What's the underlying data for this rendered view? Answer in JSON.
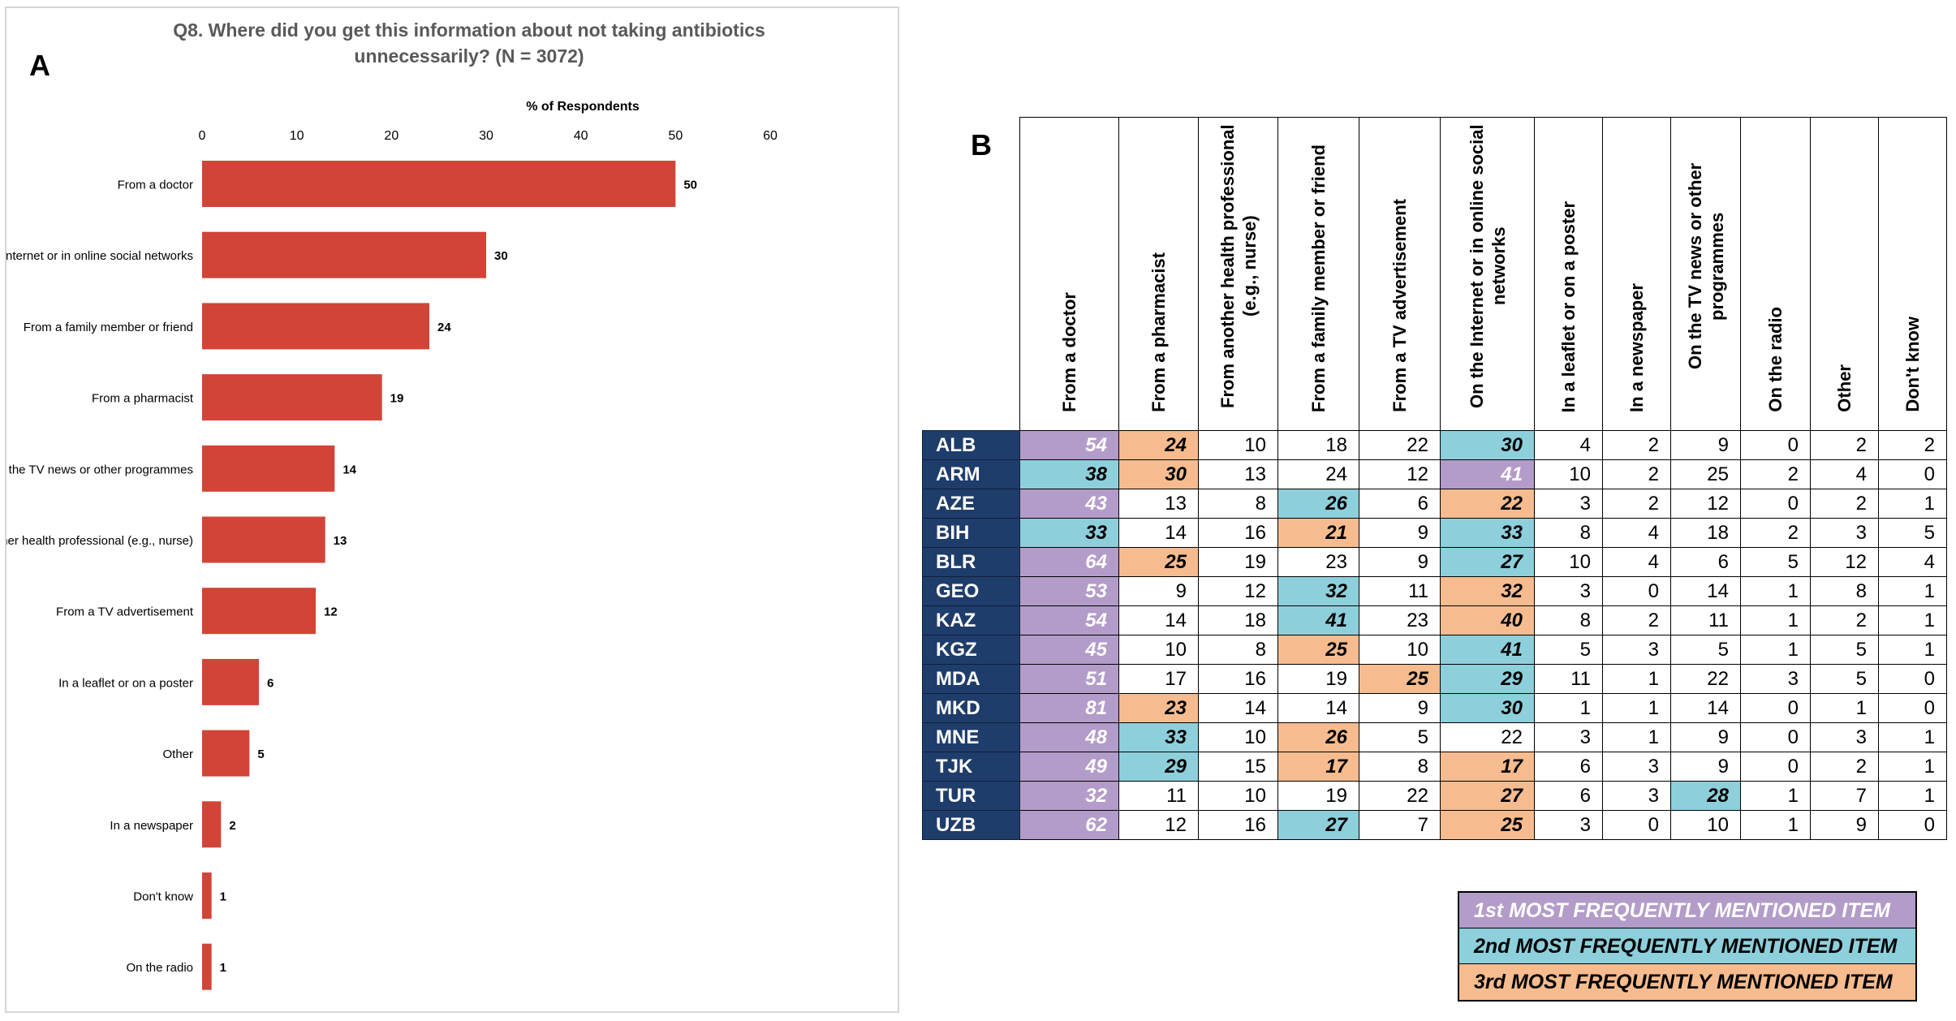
{
  "panel_a": {
    "letter": "A",
    "title_line1": "Q8. Where did you get this information about not taking antibiotics",
    "title_line2": "unnecessarily? (N = 3072)"
  },
  "panel_b": {
    "letter": "B"
  },
  "colors": {
    "bar": "#d14437",
    "rank1": "#b39cc9",
    "rank2": "#8ecfdc",
    "rank3": "#f6bc8f",
    "country_bg": "#1f3d6b"
  },
  "chart_data": {
    "type": "bar",
    "orientation": "horizontal",
    "title": "Q8. Where did you get this information about not taking antibiotics unnecessarily? (N = 3072)",
    "xlabel": "% of Respondents",
    "ylabel": "",
    "xlim": [
      0,
      60
    ],
    "xticks": [
      0,
      10,
      20,
      30,
      40,
      50,
      60
    ],
    "categories": [
      "From a doctor",
      "On the Internet or in online social networks",
      "From a family member or friend",
      "From a pharmacist",
      "On the TV news or other programmes",
      "From another health professional (e.g., nurse)",
      "From a TV advertisement",
      "In a leaflet or on a poster",
      "Other",
      "In a newspaper",
      "Don't know",
      "On the radio"
    ],
    "values": [
      50,
      30,
      24,
      19,
      14,
      13,
      12,
      6,
      5,
      2,
      1,
      1
    ],
    "grid": false
  },
  "table": {
    "headers": [
      "From a doctor",
      "From a pharmacist",
      "From another health professional (e.g., nurse)",
      "From a family member or friend",
      "From a TV advertisement",
      "On the Internet or in online social networks",
      "In a leaflet or on a poster",
      "In a newspaper",
      "On the TV news or other programmes",
      "On the radio",
      "Other",
      "Don't know"
    ],
    "rows": [
      {
        "code": "ALB",
        "values": [
          54,
          24,
          10,
          18,
          22,
          30,
          4,
          2,
          9,
          0,
          2,
          2
        ],
        "ranks": [
          1,
          3,
          0,
          0,
          0,
          2,
          0,
          0,
          0,
          0,
          0,
          0
        ]
      },
      {
        "code": "ARM",
        "values": [
          38,
          30,
          13,
          24,
          12,
          41,
          10,
          2,
          25,
          2,
          4,
          0
        ],
        "ranks": [
          2,
          3,
          0,
          0,
          0,
          1,
          0,
          0,
          0,
          0,
          0,
          0
        ]
      },
      {
        "code": "AZE",
        "values": [
          43,
          13,
          8,
          26,
          6,
          22,
          3,
          2,
          12,
          0,
          2,
          1
        ],
        "ranks": [
          1,
          0,
          0,
          2,
          0,
          3,
          0,
          0,
          0,
          0,
          0,
          0
        ]
      },
      {
        "code": "BIH",
        "values": [
          33,
          14,
          16,
          21,
          9,
          33,
          8,
          4,
          18,
          2,
          3,
          5
        ],
        "ranks": [
          2,
          0,
          0,
          3,
          0,
          2,
          0,
          0,
          0,
          0,
          0,
          0
        ]
      },
      {
        "code": "BLR",
        "values": [
          64,
          25,
          19,
          23,
          9,
          27,
          10,
          4,
          6,
          5,
          12,
          4
        ],
        "ranks": [
          1,
          3,
          0,
          0,
          0,
          2,
          0,
          0,
          0,
          0,
          0,
          0
        ]
      },
      {
        "code": "GEO",
        "values": [
          53,
          9,
          12,
          32,
          11,
          32,
          3,
          0,
          14,
          1,
          8,
          1
        ],
        "ranks": [
          1,
          0,
          0,
          2,
          0,
          3,
          0,
          0,
          0,
          0,
          0,
          0
        ]
      },
      {
        "code": "KAZ",
        "values": [
          54,
          14,
          18,
          41,
          23,
          40,
          8,
          2,
          11,
          1,
          2,
          1
        ],
        "ranks": [
          1,
          0,
          0,
          2,
          0,
          3,
          0,
          0,
          0,
          0,
          0,
          0
        ]
      },
      {
        "code": "KGZ",
        "values": [
          45,
          10,
          8,
          25,
          10,
          41,
          5,
          3,
          5,
          1,
          5,
          1
        ],
        "ranks": [
          1,
          0,
          0,
          3,
          0,
          2,
          0,
          0,
          0,
          0,
          0,
          0
        ]
      },
      {
        "code": "MDA",
        "values": [
          51,
          17,
          16,
          19,
          25,
          29,
          11,
          1,
          22,
          3,
          5,
          0
        ],
        "ranks": [
          1,
          0,
          0,
          0,
          3,
          2,
          0,
          0,
          0,
          0,
          0,
          0
        ]
      },
      {
        "code": "MKD",
        "values": [
          81,
          23,
          14,
          14,
          9,
          30,
          1,
          1,
          14,
          0,
          1,
          0
        ],
        "ranks": [
          1,
          3,
          0,
          0,
          0,
          2,
          0,
          0,
          0,
          0,
          0,
          0
        ]
      },
      {
        "code": "MNE",
        "values": [
          48,
          33,
          10,
          26,
          5,
          22,
          3,
          1,
          9,
          0,
          3,
          1
        ],
        "ranks": [
          1,
          2,
          0,
          3,
          0,
          0,
          0,
          0,
          0,
          0,
          0,
          0
        ]
      },
      {
        "code": "TJK",
        "values": [
          49,
          29,
          15,
          17,
          8,
          17,
          6,
          3,
          9,
          0,
          2,
          1
        ],
        "ranks": [
          1,
          2,
          0,
          3,
          0,
          3,
          0,
          0,
          0,
          0,
          0,
          0
        ]
      },
      {
        "code": "TUR",
        "values": [
          32,
          11,
          10,
          19,
          22,
          27,
          6,
          3,
          28,
          1,
          7,
          1
        ],
        "ranks": [
          1,
          0,
          0,
          0,
          0,
          3,
          0,
          0,
          2,
          0,
          0,
          0
        ]
      },
      {
        "code": "UZB",
        "values": [
          62,
          12,
          16,
          27,
          7,
          25,
          3,
          0,
          10,
          1,
          9,
          0
        ],
        "ranks": [
          1,
          0,
          0,
          2,
          0,
          3,
          0,
          0,
          0,
          0,
          0,
          0
        ]
      }
    ]
  },
  "legend": {
    "rank1": "1st MOST FREQUENTLY MENTIONED ITEM",
    "rank2": "2nd MOST FREQUENTLY MENTIONED ITEM",
    "rank3": "3rd MOST FREQUENTLY MENTIONED ITEM"
  }
}
